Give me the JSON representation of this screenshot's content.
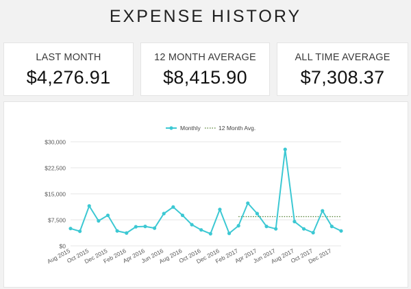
{
  "header": {
    "title": "EXPENSE HISTORY"
  },
  "stats": [
    {
      "label": "LAST MONTH",
      "value": "$4,276.91"
    },
    {
      "label": "12 MONTH AVERAGE",
      "value": "$8,415.90"
    },
    {
      "label": "ALL TIME AVERAGE",
      "value": "$7,308.37"
    }
  ],
  "colors": {
    "line": "#3cc8d3",
    "avg_line": "#4f7d2f",
    "grid": "#e6e6e6"
  },
  "chart_data": {
    "type": "line",
    "title": "",
    "xlabel": "",
    "ylabel": "",
    "ylim": [
      0,
      30000
    ],
    "y_ticks": [
      0,
      7500,
      15000,
      22500,
      30000
    ],
    "y_tick_labels": [
      "$0",
      "$7,500",
      "$15,000",
      "$22,500",
      "$30,000"
    ],
    "x": [
      "Aug 2015",
      "Sep 2015",
      "Oct 2015",
      "Nov 2015",
      "Dec 2015",
      "Jan 2016",
      "Feb 2016",
      "Mar 2016",
      "Apr 2016",
      "May 2016",
      "Jun 2016",
      "Jul 2016",
      "Aug 2016",
      "Sep 2016",
      "Oct 2016",
      "Nov 2016",
      "Dec 2016",
      "Jan 2017",
      "Feb 2017",
      "Mar 2017",
      "Apr 2017",
      "May 2017",
      "Jun 2017",
      "Jul 2017",
      "Aug 2017",
      "Sep 2017",
      "Oct 2017",
      "Nov 2017",
      "Dec 2017",
      "Jan 2018"
    ],
    "x_tick_labels": [
      "Aug 2015",
      "Oct 2015",
      "Dec 2015",
      "Feb 2016",
      "Apr 2016",
      "Jun 2016",
      "Aug 2016",
      "Oct 2016",
      "Dec 2016",
      "Feb 2017",
      "Apr 2017",
      "Jun 2017",
      "Aug 2017",
      "Oct 2017",
      "Dec 2017"
    ],
    "legend_position": "top-center",
    "grid": true,
    "series": [
      {
        "name": "Monthly",
        "values": [
          5000,
          4200,
          11500,
          7200,
          8800,
          4300,
          3700,
          5500,
          5600,
          5100,
          9300,
          11200,
          8800,
          6100,
          4600,
          3500,
          10500,
          3600,
          5800,
          12300,
          9300,
          5600,
          4900,
          27800,
          7000,
          4900,
          3800,
          10100,
          5600,
          4300
        ]
      },
      {
        "name": "12 Month Avg.",
        "style": "dotted",
        "start_index": 18,
        "end_index": 29,
        "value": 8415.9
      }
    ]
  }
}
